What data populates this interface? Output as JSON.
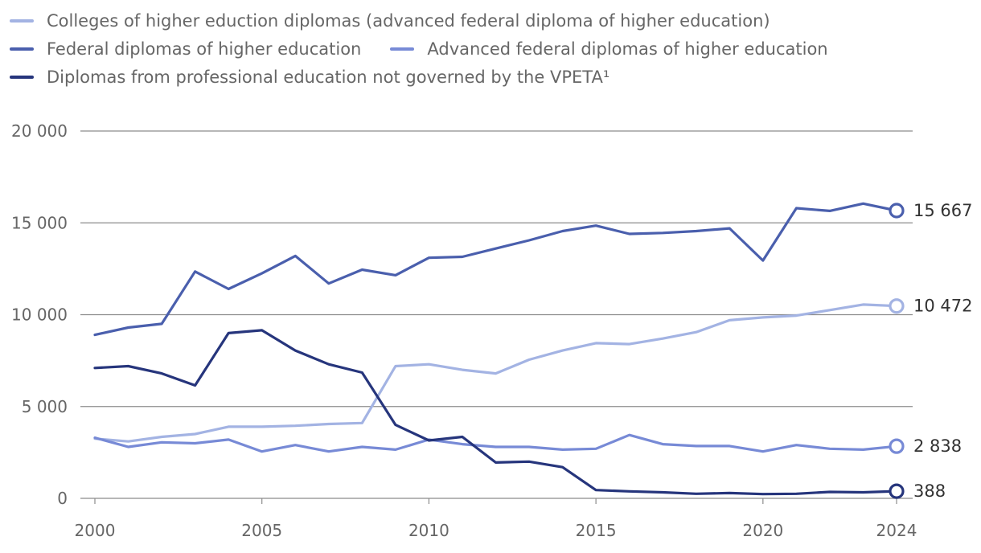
{
  "chart_data": {
    "type": "line",
    "title": "",
    "xlabel": "",
    "ylabel": "",
    "ylim": [
      0,
      20000
    ],
    "yticks": [
      0,
      5000,
      10000,
      15000,
      20000
    ],
    "ytick_labels": [
      "0",
      "5 000",
      "10 000",
      "15 000",
      "20 000"
    ],
    "xlim": [
      2000,
      2024
    ],
    "xticks": [
      2000,
      2005,
      2010,
      2015,
      2020,
      2024
    ],
    "xtick_labels": [
      "2000",
      "2005",
      "2010",
      "2015",
      "2020",
      "2024"
    ],
    "grid": "horizontal",
    "legend_position": "top-left",
    "x": [
      2000,
      2001,
      2002,
      2003,
      2004,
      2005,
      2006,
      2007,
      2008,
      2009,
      2010,
      2011,
      2012,
      2013,
      2014,
      2015,
      2016,
      2017,
      2018,
      2019,
      2020,
      2021,
      2022,
      2023,
      2024
    ],
    "series": [
      {
        "name": "Colleges of higher eduction diplomas (advanced federal diploma of higher education)",
        "color": "#a3b3e3",
        "values": [
          3250,
          3100,
          3350,
          3500,
          3900,
          3900,
          3950,
          4050,
          4100,
          7200,
          7300,
          7000,
          6800,
          7550,
          8050,
          8450,
          8400,
          8700,
          9050,
          9700,
          9850,
          9950,
          10250,
          10550,
          10472
        ],
        "end_label": "10 472"
      },
      {
        "name": "Federal diplomas of higher education",
        "color": "#4a5fad",
        "values": [
          8900,
          9300,
          9500,
          12350,
          11400,
          12250,
          13200,
          11700,
          12450,
          12150,
          13100,
          13150,
          13600,
          14050,
          14550,
          14850,
          14400,
          14450,
          14550,
          14700,
          12950,
          15800,
          15650,
          16050,
          15667
        ],
        "end_label": "15 667"
      },
      {
        "name": "Advanced federal diplomas of higher education",
        "color": "#778ad6",
        "values": [
          3300,
          2800,
          3050,
          3000,
          3200,
          2550,
          2900,
          2550,
          2800,
          2650,
          3200,
          2950,
          2800,
          2800,
          2650,
          2700,
          3450,
          2950,
          2850,
          2850,
          2550,
          2900,
          2700,
          2650,
          2838
        ],
        "end_label": "2 838"
      },
      {
        "name": "Diplomas from professional education not governed by the VPETA¹",
        "color": "#26357c",
        "values": [
          7100,
          7200,
          6800,
          6150,
          9000,
          9150,
          8050,
          7300,
          6850,
          4000,
          3150,
          3350,
          1950,
          2000,
          1700,
          450,
          380,
          330,
          250,
          290,
          230,
          250,
          350,
          330,
          388
        ],
        "end_label": "388"
      }
    ]
  }
}
